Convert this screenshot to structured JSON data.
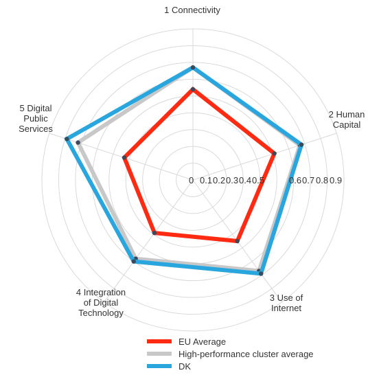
{
  "chart_data": {
    "type": "radar",
    "axes": [
      "1 Connectivity",
      "2 Human Capital",
      "3 Use of Internet",
      "4 Integration of Digital Technology",
      "5 Digital Public Services"
    ],
    "axis_label_lines": [
      [
        "1 Connectivity"
      ],
      [
        "2 Human",
        "Capital"
      ],
      [
        "3 Use of",
        "Internet"
      ],
      [
        "4 Integration",
        "of Digital",
        "Technology"
      ],
      [
        "5 Digital",
        "Public",
        "Services"
      ]
    ],
    "ticks": [
      "0",
      "0.1",
      "0.2",
      "0.3",
      "0.4",
      "0.5",
      "0.6",
      "0.7",
      "0.8",
      "0.9"
    ],
    "rlim": [
      0,
      0.9
    ],
    "grid": true,
    "legend_position": "bottom",
    "series": [
      {
        "name": "EU Average",
        "color": "#ff2a12",
        "values": [
          0.54,
          0.51,
          0.45,
          0.39,
          0.43
        ]
      },
      {
        "name": "High-performance cluster average",
        "color": "#c8c8c8",
        "values": [
          0.67,
          0.67,
          0.67,
          0.58,
          0.72
        ]
      },
      {
        "name": "DK",
        "color": "#2aa6de",
        "values": [
          0.67,
          0.68,
          0.69,
          0.6,
          0.79
        ]
      }
    ]
  }
}
